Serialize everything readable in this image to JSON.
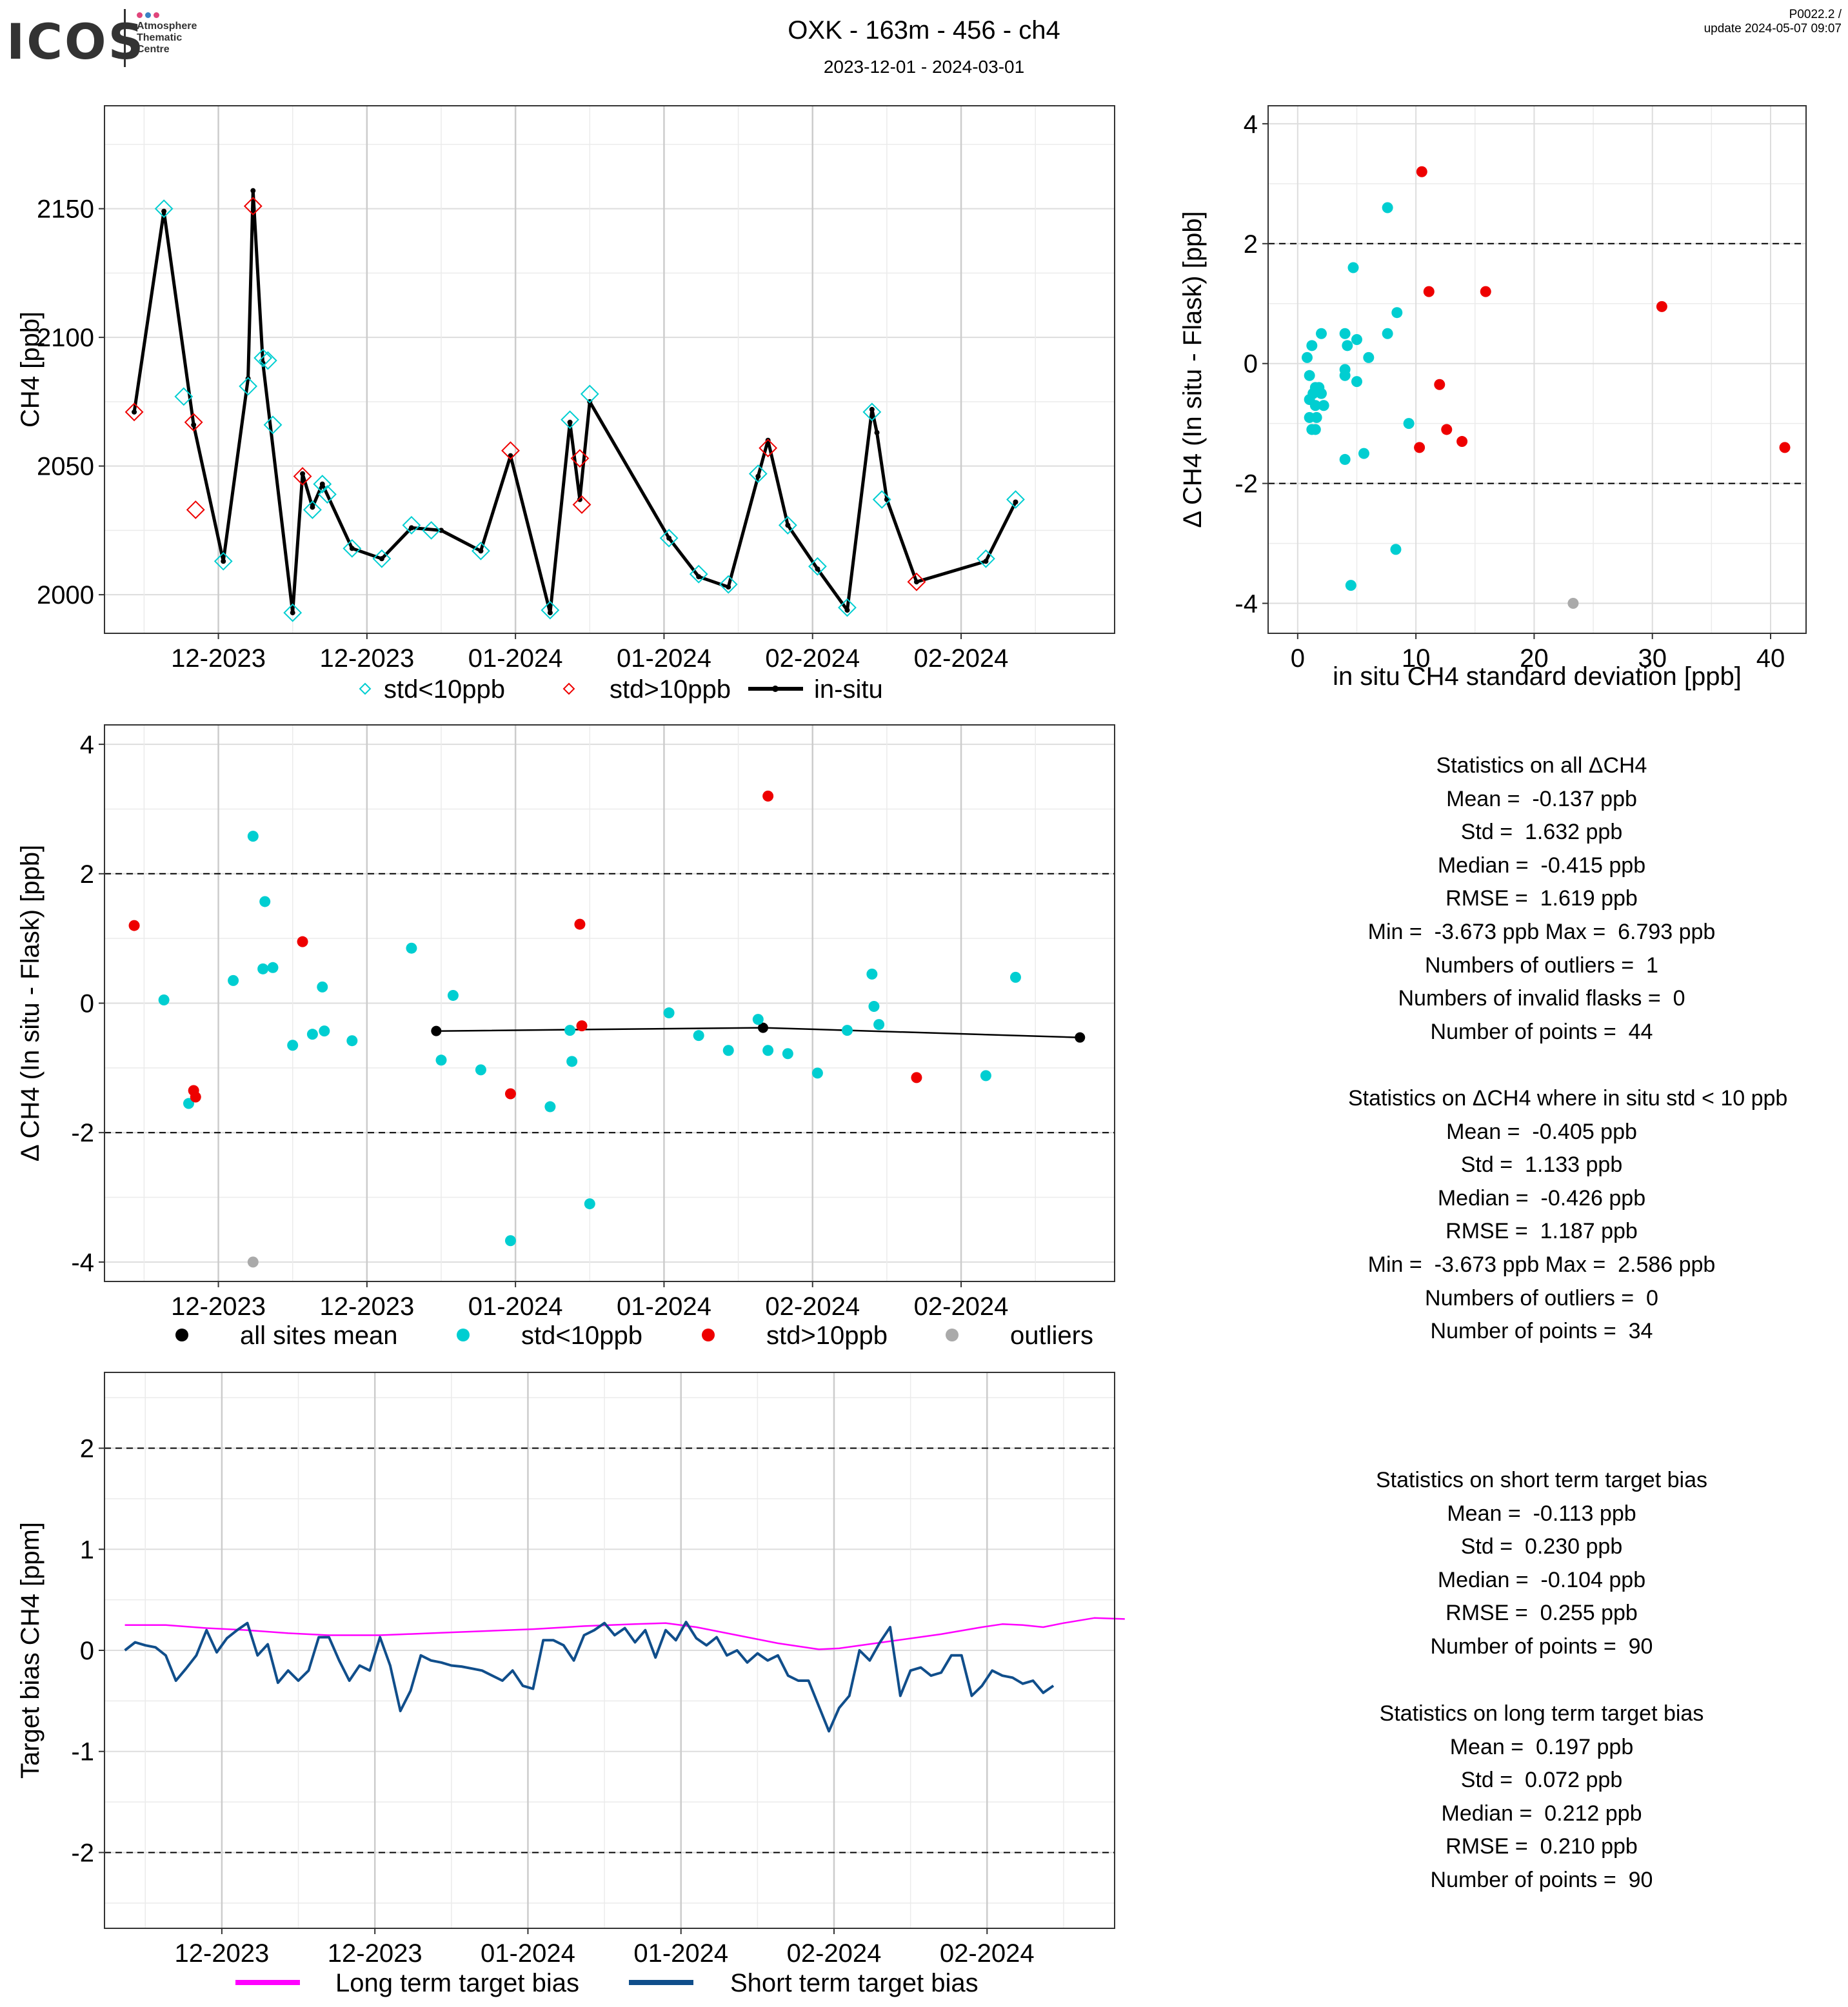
{
  "header": {
    "logo_text": "ICOS",
    "logo_subtitle": [
      "Atmosphere",
      "Thematic",
      "Centre"
    ],
    "title": "OXK - 163m - 456 - ch4",
    "subtitle": "2023-12-01 - 2024-03-01",
    "ref": "P0022.2 /",
    "update": "update  2024-05-07 09:07"
  },
  "colors": {
    "cyan": "#00CED1",
    "red": "#EE0000",
    "grey": "#AAAAAA",
    "black": "#000000",
    "magenta": "#FF00FF",
    "navy": "#104E8B"
  },
  "chart_data": [
    {
      "id": "ts",
      "type": "line",
      "ylabel": "CH4 [ppb]",
      "xlim": [
        -3,
        99
      ],
      "ylim": [
        1985,
        2190
      ],
      "yticks": [
        2000,
        2050,
        2100,
        2150
      ],
      "x_tick_positions": [
        8.5,
        23.5,
        38.5,
        53.5,
        68.5,
        83.5
      ],
      "x_tick_labels": [
        "12-2023",
        "12-2023",
        "01-2024",
        "01-2024",
        "02-2024",
        "02-2024"
      ],
      "legend": [
        "std<10ppb",
        "std>10ppb",
        "in-situ"
      ],
      "insitu": [
        [
          0,
          2071
        ],
        [
          3,
          2149
        ],
        [
          6,
          2066
        ],
        [
          9,
          2013
        ],
        [
          11.5,
          2084
        ],
        [
          12,
          2157
        ],
        [
          13,
          2090
        ],
        [
          16,
          1993
        ],
        [
          17,
          2047
        ],
        [
          18,
          2034
        ],
        [
          19,
          2043
        ],
        [
          22,
          2018
        ],
        [
          25,
          2014
        ],
        [
          28,
          2026
        ],
        [
          31,
          2025
        ],
        [
          35,
          2017
        ],
        [
          38,
          2054
        ],
        [
          42,
          1993
        ],
        [
          44,
          2067
        ],
        [
          45,
          2037
        ],
        [
          46,
          2075
        ],
        [
          54,
          2022
        ],
        [
          57,
          2007
        ],
        [
          60,
          2003
        ],
        [
          63,
          2046
        ],
        [
          64,
          2060
        ],
        [
          66,
          2027
        ],
        [
          69,
          2010
        ],
        [
          72,
          1994
        ],
        [
          74.5,
          2072
        ],
        [
          75,
          2063
        ],
        [
          76,
          2037
        ],
        [
          79,
          2005
        ],
        [
          86,
          2013
        ],
        [
          89,
          2036
        ]
      ],
      "flask_low": [
        [
          3,
          2150
        ],
        [
          5,
          2077
        ],
        [
          9,
          2013
        ],
        [
          11.5,
          2081
        ],
        [
          13,
          2092
        ],
        [
          13.5,
          2091
        ],
        [
          14,
          2066
        ],
        [
          16,
          1993
        ],
        [
          18,
          2033
        ],
        [
          19,
          2043
        ],
        [
          19.5,
          2039
        ],
        [
          22,
          2018
        ],
        [
          25,
          2014
        ],
        [
          28,
          2027
        ],
        [
          30,
          2025
        ],
        [
          35,
          2017
        ],
        [
          42,
          1994
        ],
        [
          44,
          2068
        ],
        [
          46,
          2078
        ],
        [
          54,
          2022
        ],
        [
          57,
          2008
        ],
        [
          60,
          2004
        ],
        [
          63,
          2047
        ],
        [
          66,
          2027
        ],
        [
          69,
          2011
        ],
        [
          72,
          1995
        ],
        [
          74.5,
          2071
        ],
        [
          75.5,
          2037
        ],
        [
          86,
          2014
        ],
        [
          89,
          2037
        ]
      ],
      "flask_high": [
        [
          0,
          2071
        ],
        [
          6,
          2067
        ],
        [
          6.2,
          2033
        ],
        [
          12,
          2151
        ],
        [
          17,
          2046
        ],
        [
          38,
          2056
        ],
        [
          45,
          2053
        ],
        [
          45.2,
          2035
        ],
        [
          64,
          2057
        ],
        [
          79,
          2005
        ]
      ]
    },
    {
      "id": "scatter",
      "type": "scatter",
      "xlabel": "in situ CH4 standard deviation [ppb]",
      "ylabel": "Δ CH4 (In situ - Flask) [ppb]",
      "xlim": [
        -2.5,
        43
      ],
      "ylim": [
        -4.5,
        4.3
      ],
      "xticks": [
        0,
        10,
        20,
        30,
        40
      ],
      "yticks": [
        -4,
        -2,
        0,
        2,
        4
      ],
      "hlines": [
        2,
        -2
      ],
      "cyan": [
        [
          0.8,
          0.1
        ],
        [
          1.2,
          0.3
        ],
        [
          2.0,
          0.5
        ],
        [
          1.0,
          -0.2
        ],
        [
          1.5,
          -0.4
        ],
        [
          2.0,
          -0.5
        ],
        [
          1.0,
          -0.6
        ],
        [
          1.5,
          -0.7
        ],
        [
          2.2,
          -0.7
        ],
        [
          1.0,
          -0.9
        ],
        [
          1.6,
          -0.9
        ],
        [
          1.2,
          -1.1
        ],
        [
          1.5,
          -1.1
        ],
        [
          1.8,
          -0.4
        ],
        [
          1.3,
          -0.5
        ],
        [
          4.0,
          0.5
        ],
        [
          4.2,
          0.3
        ],
        [
          5.0,
          0.4
        ],
        [
          4.0,
          -0.1
        ],
        [
          4.0,
          -0.2
        ],
        [
          5.0,
          -0.3
        ],
        [
          6.0,
          0.1
        ],
        [
          4.0,
          -1.6
        ],
        [
          5.6,
          -1.5
        ],
        [
          7.6,
          2.6
        ],
        [
          4.7,
          1.6
        ],
        [
          7.6,
          0.5
        ],
        [
          8.4,
          0.85
        ],
        [
          9.4,
          -1.0
        ],
        [
          8.3,
          -3.1
        ],
        [
          4.5,
          -3.7
        ]
      ],
      "red": [
        [
          10.5,
          3.2
        ],
        [
          11.1,
          1.2
        ],
        [
          15.9,
          1.2
        ],
        [
          30.8,
          0.95
        ],
        [
          12.0,
          -0.35
        ],
        [
          12.6,
          -1.1
        ],
        [
          13.9,
          -1.3
        ],
        [
          10.3,
          -1.4
        ],
        [
          41.2,
          -1.4
        ]
      ],
      "grey": [
        [
          23.3,
          -4.0
        ]
      ]
    },
    {
      "id": "delta",
      "type": "scatter",
      "ylabel": "Δ CH4 (In situ - Flask) [ppb]",
      "xlim": [
        -3,
        99
      ],
      "ylim": [
        -4.3,
        4.3
      ],
      "yticks": [
        -4,
        -2,
        0,
        2,
        4
      ],
      "hlines": [
        2,
        -2
      ],
      "x_tick_positions": [
        8.5,
        23.5,
        38.5,
        53.5,
        68.5,
        83.5
      ],
      "x_tick_labels": [
        "12-2023",
        "12-2023",
        "01-2024",
        "01-2024",
        "02-2024",
        "02-2024"
      ],
      "legend": [
        "all sites mean",
        "std<10ppb",
        "std>10ppb",
        "outliers"
      ],
      "mean": [
        [
          30.5,
          -0.43
        ],
        [
          63.5,
          -0.38
        ],
        [
          95.5,
          -0.53
        ]
      ],
      "cyan": [
        [
          3,
          0.05
        ],
        [
          5.5,
          -1.55
        ],
        [
          10,
          0.35
        ],
        [
          12,
          2.58
        ],
        [
          13,
          0.53
        ],
        [
          13.2,
          1.57
        ],
        [
          14,
          0.55
        ],
        [
          16,
          -0.65
        ],
        [
          18,
          -0.48
        ],
        [
          19,
          0.25
        ],
        [
          19.2,
          -0.43
        ],
        [
          22,
          -0.58
        ],
        [
          28,
          0.85
        ],
        [
          31,
          -0.88
        ],
        [
          32.2,
          0.12
        ],
        [
          35,
          -1.03
        ],
        [
          38,
          -3.67
        ],
        [
          42,
          -1.6
        ],
        [
          44,
          -0.42
        ],
        [
          44.2,
          -0.9
        ],
        [
          46,
          -3.1
        ],
        [
          54,
          -0.15
        ],
        [
          57,
          -0.5
        ],
        [
          60,
          -0.73
        ],
        [
          63,
          -0.25
        ],
        [
          64,
          -0.73
        ],
        [
          66,
          -0.78
        ],
        [
          69,
          -1.08
        ],
        [
          72,
          -0.42
        ],
        [
          74.5,
          0.45
        ],
        [
          74.7,
          -0.05
        ],
        [
          75.2,
          -0.33
        ],
        [
          86,
          -1.12
        ],
        [
          89,
          0.4
        ]
      ],
      "red": [
        [
          0,
          1.2
        ],
        [
          6,
          -1.35
        ],
        [
          6.2,
          -1.45
        ],
        [
          17,
          0.95
        ],
        [
          38,
          -1.4
        ],
        [
          45,
          1.22
        ],
        [
          45.2,
          -0.35
        ],
        [
          64,
          3.2
        ],
        [
          79,
          -1.15
        ]
      ],
      "grey": [
        [
          12,
          -4.0
        ]
      ]
    },
    {
      "id": "bias",
      "type": "line",
      "ylabel": "Target bias CH4 [ppm]",
      "xlim": [
        -2,
        97
      ],
      "ylim": [
        -2.75,
        2.75
      ],
      "yticks": [
        -2,
        -1,
        0,
        1,
        2
      ],
      "hlines": [
        2,
        -2
      ],
      "x_tick_positions": [
        9.5,
        24.5,
        39.5,
        54.5,
        69.5,
        84.5
      ],
      "x_tick_labels": [
        "12-2023",
        "12-2023",
        "01-2024",
        "01-2024",
        "02-2024",
        "02-2024"
      ],
      "legend": [
        "Long term target bias",
        "Short term target bias"
      ],
      "long_term": [
        [
          0,
          0.25
        ],
        [
          4,
          0.25
        ],
        [
          8,
          0.22
        ],
        [
          12,
          0.2
        ],
        [
          16,
          0.17
        ],
        [
          20,
          0.15
        ],
        [
          25,
          0.15
        ],
        [
          30,
          0.17
        ],
        [
          35,
          0.19
        ],
        [
          40,
          0.21
        ],
        [
          45,
          0.24
        ],
        [
          50,
          0.26
        ],
        [
          53,
          0.27
        ],
        [
          56,
          0.23
        ],
        [
          60,
          0.15
        ],
        [
          64,
          0.07
        ],
        [
          68,
          0.01
        ],
        [
          70,
          0.02
        ],
        [
          75,
          0.09
        ],
        [
          80,
          0.16
        ],
        [
          84,
          0.23
        ],
        [
          86,
          0.26
        ],
        [
          88,
          0.25
        ],
        [
          90,
          0.23
        ],
        [
          92,
          0.27
        ],
        [
          95,
          0.32
        ],
        [
          98,
          0.31
        ]
      ],
      "short_term": [
        [
          0,
          0.0
        ],
        [
          1,
          0.08
        ],
        [
          2,
          0.05
        ],
        [
          3,
          0.03
        ],
        [
          4,
          -0.05
        ],
        [
          5,
          -0.3
        ],
        [
          6,
          -0.18
        ],
        [
          7,
          -0.05
        ],
        [
          8,
          0.2
        ],
        [
          9,
          -0.02
        ],
        [
          10,
          0.12
        ],
        [
          11,
          0.2
        ],
        [
          12,
          0.27
        ],
        [
          13,
          -0.05
        ],
        [
          14,
          0.06
        ],
        [
          15,
          -0.32
        ],
        [
          16,
          -0.2
        ],
        [
          17,
          -0.3
        ],
        [
          18,
          -0.2
        ],
        [
          19,
          0.13
        ],
        [
          20,
          0.13
        ],
        [
          21,
          -0.1
        ],
        [
          22,
          -0.3
        ],
        [
          23,
          -0.15
        ],
        [
          24,
          -0.2
        ],
        [
          25,
          0.13
        ],
        [
          26,
          -0.15
        ],
        [
          27,
          -0.6
        ],
        [
          28,
          -0.4
        ],
        [
          29,
          -0.05
        ],
        [
          30,
          -0.1
        ],
        [
          31,
          -0.12
        ],
        [
          32,
          -0.15
        ],
        [
          33,
          -0.16
        ],
        [
          34,
          -0.18
        ],
        [
          35,
          -0.2
        ],
        [
          36,
          -0.25
        ],
        [
          37,
          -0.3
        ],
        [
          38,
          -0.2
        ],
        [
          39,
          -0.35
        ],
        [
          40,
          -0.38
        ],
        [
          41,
          0.1
        ],
        [
          42,
          0.1
        ],
        [
          43,
          0.05
        ],
        [
          44,
          -0.1
        ],
        [
          45,
          0.15
        ],
        [
          46,
          0.2
        ],
        [
          47,
          0.27
        ],
        [
          48,
          0.15
        ],
        [
          49,
          0.22
        ],
        [
          50,
          0.08
        ],
        [
          51,
          0.2
        ],
        [
          52,
          -0.07
        ],
        [
          53,
          0.2
        ],
        [
          54,
          0.1
        ],
        [
          55,
          0.28
        ],
        [
          56,
          0.12
        ],
        [
          57,
          0.05
        ],
        [
          58,
          0.13
        ],
        [
          59,
          -0.05
        ],
        [
          60,
          0.0
        ],
        [
          61,
          -0.12
        ],
        [
          62,
          -0.03
        ],
        [
          63,
          -0.1
        ],
        [
          64,
          -0.05
        ],
        [
          65,
          -0.25
        ],
        [
          66,
          -0.3
        ],
        [
          67,
          -0.3
        ],
        [
          68,
          -0.55
        ],
        [
          69,
          -0.8
        ],
        [
          70,
          -0.57
        ],
        [
          71,
          -0.45
        ],
        [
          72,
          0.0
        ],
        [
          73,
          -0.1
        ],
        [
          74,
          0.08
        ],
        [
          75,
          0.23
        ],
        [
          76,
          -0.45
        ],
        [
          77,
          -0.2
        ],
        [
          78,
          -0.17
        ],
        [
          79,
          -0.25
        ],
        [
          80,
          -0.22
        ],
        [
          81,
          -0.05
        ],
        [
          82,
          -0.05
        ],
        [
          83,
          -0.45
        ],
        [
          84,
          -0.35
        ],
        [
          85,
          -0.2
        ],
        [
          86,
          -0.25
        ],
        [
          87,
          -0.27
        ],
        [
          88,
          -0.33
        ],
        [
          89,
          -0.3
        ],
        [
          90,
          -0.42
        ],
        [
          91,
          -0.35
        ]
      ]
    }
  ],
  "stats": {
    "all": {
      "heading": "Statistics on all ΔCH4",
      "lines": [
        "Mean =  -0.137 ppb",
        "Std =  1.632 ppb",
        "Median =  -0.415 ppb",
        "RMSE =  1.619 ppb",
        "Min =  -3.673 ppb Max =  6.793 ppb",
        "Numbers of outliers =  1",
        "Numbers of invalid flasks =  0",
        "Number of points =  44"
      ]
    },
    "std10": {
      "heading": "Statistics on ΔCH4 where in situ std < 10 ppb",
      "lines": [
        "Mean =  -0.405 ppb",
        "Std =  1.133 ppb",
        "Median =  -0.426 ppb",
        "RMSE =  1.187 ppb",
        "Min =  -3.673 ppb Max =  2.586 ppb",
        "Numbers of outliers =  0",
        "Number of points =  34"
      ]
    },
    "short": {
      "heading": "Statistics on short term target bias",
      "lines": [
        "Mean =  -0.113 ppb",
        "Std =  0.230 ppb",
        "Median =  -0.104 ppb",
        "RMSE =  0.255 ppb",
        "Number of points =  90"
      ]
    },
    "long": {
      "heading": "Statistics on long term target bias",
      "lines": [
        "Mean =  0.197 ppb",
        "Std =  0.072 ppb",
        "Median =  0.212 ppb",
        "RMSE =  0.210 ppb",
        "Number of points =  90"
      ]
    }
  }
}
